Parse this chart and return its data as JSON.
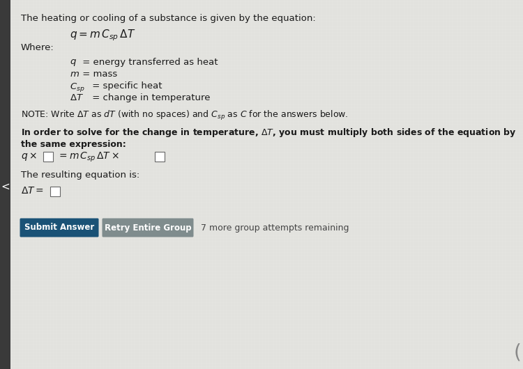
{
  "bg_color": "#e8e8e4",
  "content_bg": "#e0e0db",
  "left_bar_color": "#3a3a3a",
  "title_text": "The heating or cooling of a substance is given by the equation:",
  "equation_main": "$q = m\\,C_{sp}\\,\\Delta T$",
  "where_text": "Where:",
  "def1_math": "$q$",
  "def1_rest": " = energy transferred as heat",
  "def2_math": "$m$",
  "def2_rest": " = mass",
  "def3_math": "$C_{sp}$",
  "def3_rest": " = specific heat",
  "def4_math": "$\\Delta T$",
  "def4_rest": " = change in temperature",
  "note_text": "NOTE: Write $\\Delta T$ as $dT$ (with no spaces) and $C_{sp}$ as $C$ for the answers below.",
  "bold_text": "In order to solve for the change in temperature, $\\Delta T$, you must multiply both sides of the equation by the same expression:",
  "eq2_part1": "$q \\times$",
  "eq2_part2": "$= m\\,C_{sp}\\,\\Delta T \\times$",
  "resulting_text": "The resulting equation is:",
  "eq3_part": "$\\Delta T =$",
  "btn1_text": "Submit Answer",
  "btn2_text": "Retry Entire Group",
  "btn1_color": "#1a5276",
  "btn2_color": "#7f8c8d",
  "remaining_text": "7 more group attempts remaining",
  "text_color": "#1a1a1a",
  "text_color_light": "#444444"
}
